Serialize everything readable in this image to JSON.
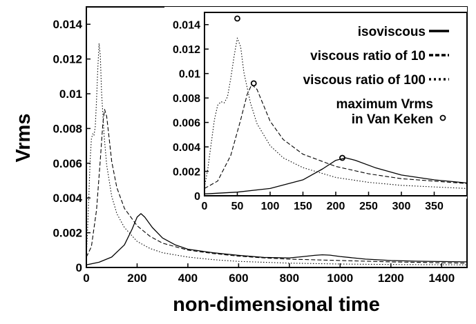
{
  "chart_data": [
    {
      "name": "main",
      "type": "line",
      "xlabel": "non-dimensional time",
      "ylabel": "Vrms",
      "xlim": [
        0,
        1500
      ],
      "ylim": [
        0,
        0.015
      ],
      "xticks": [
        0,
        200,
        400,
        600,
        800,
        1000,
        1200,
        1400
      ],
      "xtick_labels": [
        "0",
        "200",
        "400",
        "600",
        "800",
        "1000",
        "1200",
        "1400"
      ],
      "yticks": [
        0,
        0.002,
        0.004,
        0.006,
        0.008,
        0.01,
        0.012,
        0.014
      ],
      "ytick_labels": [
        "0",
        "0.002",
        "0.004",
        "0.006",
        "0.008",
        "0.01",
        "0.012",
        "0.014"
      ],
      "series": [
        {
          "name": "isoviscous",
          "style": "solid",
          "x": [
            0,
            50,
            100,
            150,
            180,
            200,
            215,
            230,
            260,
            300,
            350,
            400,
            500,
            600,
            700,
            800,
            850,
            900,
            930,
            960,
            1000,
            1100,
            1200,
            1300,
            1400,
            1500
          ],
          "y": [
            0.00015,
            0.0003,
            0.0006,
            0.0013,
            0.0022,
            0.0029,
            0.0031,
            0.0029,
            0.0023,
            0.0017,
            0.0013,
            0.00105,
            0.00085,
            0.0007,
            0.00058,
            0.00055,
            0.00062,
            0.0007,
            0.00073,
            0.00071,
            0.00063,
            0.00048,
            0.0004,
            0.00036,
            0.00034,
            0.00032
          ]
        },
        {
          "name": "viscous ratio of 10",
          "style": "dashed",
          "x": [
            0,
            20,
            40,
            55,
            65,
            72,
            80,
            90,
            100,
            120,
            150,
            200,
            250,
            300,
            400,
            500,
            600,
            700,
            800,
            1000,
            1200,
            1400,
            1500
          ],
          "y": [
            0.0006,
            0.0012,
            0.0033,
            0.0062,
            0.0083,
            0.0091,
            0.0087,
            0.0074,
            0.0061,
            0.0046,
            0.0034,
            0.0024,
            0.0018,
            0.0014,
            0.001,
            0.0008,
            0.00065,
            0.00055,
            0.00048,
            0.0004,
            0.00032,
            0.00027,
            0.00025
          ]
        },
        {
          "name": "viscous ratio of 100",
          "style": "dotted",
          "x": [
            0,
            5,
            10,
            15,
            20,
            25,
            30,
            35,
            40,
            45,
            50,
            55,
            60,
            70,
            80,
            100,
            120,
            150,
            200,
            250,
            300,
            400,
            500,
            600,
            800,
            1000,
            1200,
            1500
          ],
          "y": [
            0.0007,
            0.0022,
            0.0042,
            0.0062,
            0.0074,
            0.0077,
            0.0076,
            0.0081,
            0.0096,
            0.0114,
            0.0129,
            0.0122,
            0.0101,
            0.0076,
            0.0059,
            0.0041,
            0.0031,
            0.0023,
            0.0015,
            0.0011,
            0.00085,
            0.0006,
            0.00045,
            0.00035,
            0.00025,
            0.0002,
            0.00017,
            0.00015
          ]
        }
      ]
    },
    {
      "name": "inset",
      "type": "line",
      "xlim": [
        0,
        400
      ],
      "ylim": [
        0,
        0.015
      ],
      "xticks": [
        0,
        50,
        100,
        150,
        200,
        250,
        300,
        350
      ],
      "xtick_labels": [
        "0",
        "50",
        "100",
        "150",
        "200",
        "250",
        "300",
        "350"
      ],
      "yticks": [
        0,
        0.002,
        0.004,
        0.006,
        0.008,
        0.01,
        0.012,
        0.014
      ],
      "ytick_labels": [
        "0",
        "0.002",
        "0.004",
        "0.006",
        "0.008",
        "0.01",
        "0.012",
        "0.014"
      ],
      "legend": {
        "location": "top-right",
        "entries": [
          {
            "label": "isoviscous",
            "style": "solid"
          },
          {
            "label": "viscous ratio of 10",
            "style": "dashed"
          },
          {
            "label": "viscous ratio of 100",
            "style": "dotted"
          },
          {
            "label": "maximum Vrms",
            "label2": "in Van Keken",
            "style": "circle"
          }
        ]
      },
      "markers": {
        "name": "maximum Vrms in Van Keken",
        "x": [
          50,
          75,
          210
        ],
        "y": [
          0.0145,
          0.0092,
          0.0031
        ]
      }
    }
  ]
}
